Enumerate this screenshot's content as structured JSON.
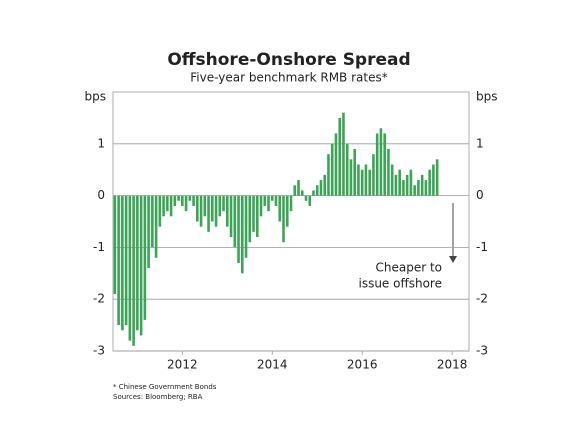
{
  "chart_data": {
    "type": "bar",
    "title": "Offshore-Onshore Spread",
    "subtitle": "Five-year benchmark RMB rates*",
    "y_label": "bps",
    "y2_label": "bps",
    "annotation": [
      "Cheaper to",
      "issue offshore"
    ],
    "footnotes": [
      "* Chinese Government Bonds",
      "Sources: Bloomberg; RBA"
    ],
    "color": "#3aa655",
    "grid": true,
    "ylim": [
      -3,
      2
    ],
    "yticks": [
      -3,
      -2,
      -1,
      0,
      1
    ],
    "categories": [
      null,
      null,
      null,
      null,
      null,
      null,
      null,
      null,
      null,
      null,
      null,
      null,
      null,
      null,
      null,
      null,
      null,
      null,
      "2012",
      null,
      null,
      null,
      null,
      null,
      null,
      null,
      null,
      null,
      null,
      null,
      null,
      null,
      null,
      null,
      null,
      null,
      null,
      null,
      null,
      null,
      null,
      null,
      "2014",
      null,
      null,
      null,
      null,
      null,
      null,
      null,
      null,
      null,
      null,
      null,
      null,
      null,
      null,
      null,
      null,
      null,
      null,
      null,
      null,
      null,
      null,
      null,
      "2016",
      null,
      null,
      null,
      null,
      null,
      null,
      null,
      null,
      null,
      null,
      null,
      null,
      null,
      null,
      null,
      null,
      null,
      null,
      null,
      null,
      null,
      null,
      null,
      "2018",
      null,
      null,
      null,
      null
    ],
    "values": [
      -1.9,
      -2.5,
      -2.6,
      -2.5,
      -2.8,
      -2.9,
      -2.6,
      -2.7,
      -2.4,
      -1.4,
      -1.0,
      -1.2,
      -0.6,
      -0.4,
      -0.3,
      -0.4,
      -0.2,
      -0.1,
      -0.2,
      -0.3,
      -0.1,
      -0.2,
      -0.5,
      -0.6,
      -0.4,
      -0.7,
      -0.5,
      -0.6,
      -0.4,
      -0.3,
      -0.6,
      -0.8,
      -1.0,
      -1.3,
      -1.5,
      -1.2,
      -0.9,
      -0.7,
      -0.8,
      -0.4,
      -0.2,
      -0.3,
      -0.1,
      -0.2,
      -0.5,
      -0.9,
      -0.6,
      -0.3,
      0.2,
      0.3,
      0.1,
      -0.1,
      -0.2,
      0.1,
      0.2,
      0.3,
      0.4,
      0.8,
      1.0,
      1.2,
      1.5,
      1.6,
      1.0,
      0.7,
      0.9,
      0.6,
      0.5,
      0.6,
      0.5,
      0.8,
      1.2,
      1.3,
      1.2,
      0.9,
      0.6,
      0.4,
      0.5,
      0.3,
      0.4,
      0.5,
      0.2,
      0.3,
      0.4,
      0.3,
      0.5,
      0.6,
      0.7,
      null,
      null,
      null,
      null,
      null,
      null,
      null,
      null
    ]
  }
}
